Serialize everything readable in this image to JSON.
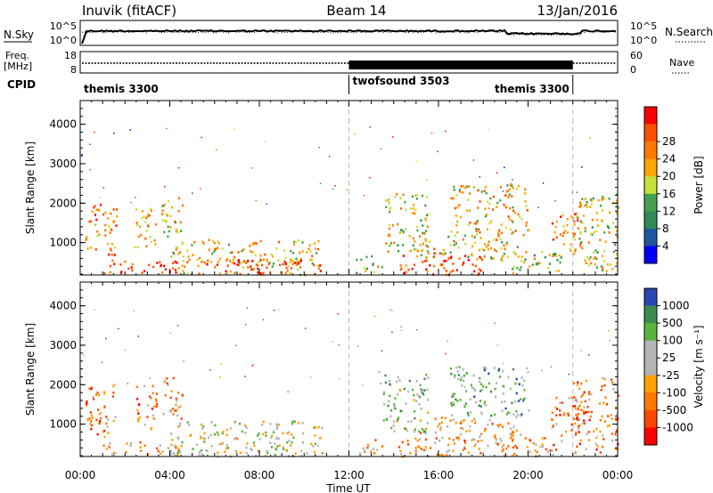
{
  "header": {
    "station": "Inuvik (fitACF)",
    "beam": "Beam 14",
    "date": "13/Jan/2016"
  },
  "top_panels": {
    "nsky_label": "N.Sky",
    "nsky_ticks": [
      "10^5",
      "10^0"
    ],
    "nsearch_label": "N.Search",
    "nsearch_ticks": [
      "10^5",
      "10^0"
    ],
    "freq_label_1": "Freq.",
    "freq_label_2": "[MHz]",
    "freq_ticks": [
      "18",
      "8"
    ],
    "nave_label": "Nave",
    "nave_ticks": [
      "60",
      "0"
    ],
    "cpid_label": "CPID",
    "cpid_segments": [
      {
        "name": "themis 3300",
        "start_h": 0,
        "end_h": 12
      },
      {
        "name": "twofsound 3503",
        "start_h": 12,
        "end_h": 22
      },
      {
        "name": "themis 3300",
        "start_h": 22,
        "end_h": 24
      }
    ]
  },
  "colors": {
    "power": [
      "#0000ff",
      "#1e55a0",
      "#2e8b57",
      "#46a04e",
      "#c8e03c",
      "#ffa500",
      "#ff7800",
      "#ff5000",
      "#ff0000"
    ],
    "velocity": [
      "#2846b4",
      "#3c8c50",
      "#5ab43c",
      "#b4b4b4",
      "#b4b4b4",
      "#ffa000",
      "#ff7800",
      "#ff4600",
      "#ff0000"
    ],
    "ground_scatter": "#bebebe"
  },
  "chart_data": [
    {
      "type": "heatmap",
      "panel": "power",
      "x_hours": [
        0,
        24
      ],
      "xlabel": "",
      "ylabel": "Slant Range [km]",
      "ylim": [
        180,
        4600
      ],
      "yticks": [
        "1000",
        "2000",
        "3000",
        "4000"
      ],
      "xticks": [
        "00:00",
        "04:00",
        "08:00",
        "12:00",
        "16:00",
        "20:00",
        "00:00"
      ],
      "colorbar_label": "Power [dB]",
      "colorbar_ticks": [
        "4",
        "8",
        "12",
        "16",
        "20",
        "24",
        "28"
      ],
      "scatter_regions": [
        {
          "t0": 0.2,
          "t1": 1.6,
          "r0": 700,
          "r1": 2000,
          "level": 0.72
        },
        {
          "t0": 1.0,
          "t1": 4.5,
          "r0": 250,
          "r1": 600,
          "level": 0.85
        },
        {
          "t0": 2.4,
          "t1": 3.4,
          "r0": 900,
          "r1": 2000,
          "level": 0.7
        },
        {
          "t0": 3.6,
          "t1": 4.6,
          "r0": 1100,
          "r1": 2200,
          "level": 0.55
        },
        {
          "t0": 4.0,
          "t1": 10.8,
          "r0": 200,
          "r1": 1100,
          "level": 0.62
        },
        {
          "t0": 5.5,
          "t1": 10.7,
          "r0": 250,
          "r1": 600,
          "level": 0.85
        },
        {
          "t0": 12.3,
          "t1": 13.5,
          "r0": 250,
          "r1": 700,
          "level": 0.45
        },
        {
          "t0": 13.5,
          "t1": 15.5,
          "r0": 800,
          "r1": 2300,
          "level": 0.55
        },
        {
          "t0": 14.2,
          "t1": 18.3,
          "r0": 200,
          "r1": 700,
          "level": 0.85
        },
        {
          "t0": 15.0,
          "t1": 19.5,
          "r0": 600,
          "r1": 1200,
          "level": 0.6
        },
        {
          "t0": 16.5,
          "t1": 20.0,
          "r0": 1200,
          "r1": 2500,
          "level": 0.58
        },
        {
          "t0": 18.5,
          "t1": 21.5,
          "r0": 200,
          "r1": 800,
          "level": 0.5
        },
        {
          "t0": 21.0,
          "t1": 22.5,
          "r0": 800,
          "r1": 1800,
          "level": 0.7
        },
        {
          "t0": 22.0,
          "t1": 24.0,
          "r0": 300,
          "r1": 2200,
          "level": 0.55
        }
      ]
    },
    {
      "type": "heatmap",
      "panel": "velocity",
      "x_hours": [
        0,
        24
      ],
      "xlabel": "Time UT",
      "ylabel": "Slant Range [km]",
      "ylim": [
        180,
        4600
      ],
      "yticks": [
        "1000",
        "2000",
        "3000",
        "4000"
      ],
      "xticks": [
        "00:00",
        "04:00",
        "08:00",
        "12:00",
        "16:00",
        "20:00",
        "00:00"
      ],
      "colorbar_label": "Velocity [m s⁻¹]",
      "colorbar_ticks": [
        "1000",
        "500",
        "100",
        "25",
        "-25",
        "-100",
        "-500",
        "-1000"
      ],
      "scatter_regions": [
        {
          "t0": 0.2,
          "t1": 1.6,
          "r0": 700,
          "r1": 2000,
          "level": 0.72
        },
        {
          "t0": 1.0,
          "t1": 4.5,
          "r0": 250,
          "r1": 600,
          "level": 0.6
        },
        {
          "t0": 2.4,
          "t1": 3.4,
          "r0": 900,
          "r1": 2000,
          "level": 0.7
        },
        {
          "t0": 3.6,
          "t1": 4.6,
          "r0": 1100,
          "r1": 2200,
          "level": 0.65
        },
        {
          "t0": 4.0,
          "t1": 10.8,
          "r0": 200,
          "r1": 1100,
          "level": 0.45
        },
        {
          "t0": 12.3,
          "t1": 13.5,
          "r0": 250,
          "r1": 700,
          "level": 0.6
        },
        {
          "t0": 13.5,
          "t1": 15.5,
          "r0": 800,
          "r1": 2300,
          "level": 0.35
        },
        {
          "t0": 14.2,
          "t1": 18.3,
          "r0": 200,
          "r1": 700,
          "level": 0.68
        },
        {
          "t0": 15.0,
          "t1": 19.5,
          "r0": 600,
          "r1": 1200,
          "level": 0.6
        },
        {
          "t0": 16.5,
          "t1": 20.0,
          "r0": 1200,
          "r1": 2500,
          "level": 0.3
        },
        {
          "t0": 18.5,
          "t1": 21.5,
          "r0": 200,
          "r1": 800,
          "level": 0.65
        },
        {
          "t0": 21.0,
          "t1": 22.5,
          "r0": 800,
          "r1": 1800,
          "level": 0.75
        },
        {
          "t0": 22.0,
          "t1": 24.0,
          "r0": 300,
          "r1": 2200,
          "level": 0.7
        }
      ]
    }
  ]
}
